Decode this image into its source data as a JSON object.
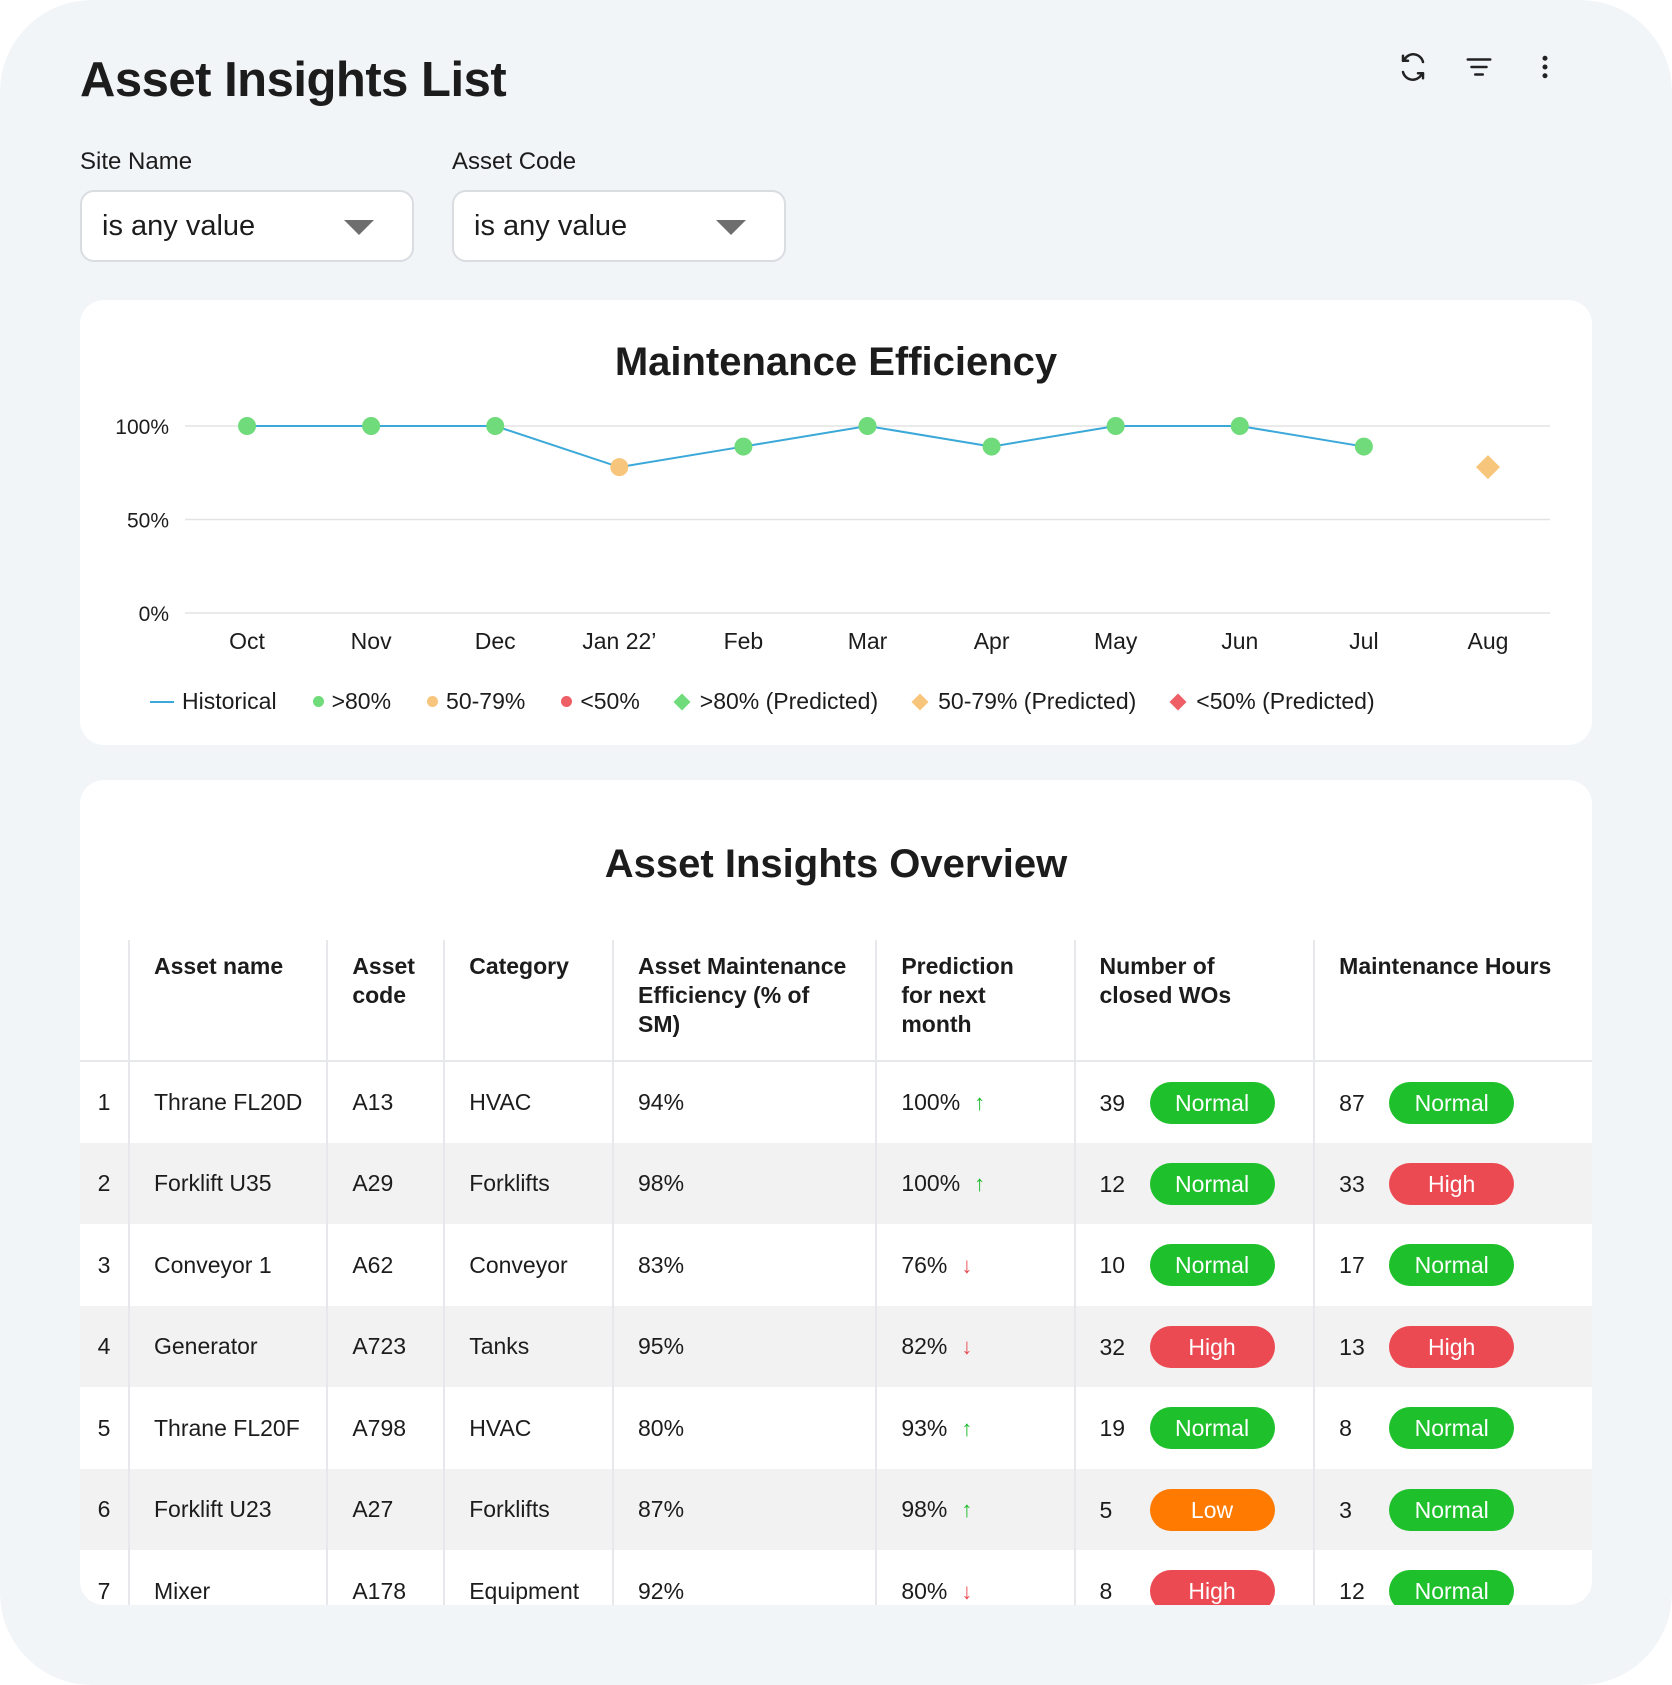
{
  "page": {
    "title": "Asset Insights List",
    "toolbar": {
      "refresh_icon": "refresh-icon",
      "filter_icon": "filter-icon",
      "more_icon": "more-vertical-icon"
    }
  },
  "filters": [
    {
      "label": "Site Name",
      "value": "is any value"
    },
    {
      "label": "Asset Code",
      "value": "is any value"
    }
  ],
  "colors": {
    "line": "#3aa8d8",
    "high_efficiency": "#6fdb7a",
    "mid_efficiency": "#f7c57b",
    "low_efficiency": "#ee5f66",
    "badge_normal": "#1ec02c",
    "badge_high": "#ec4a52",
    "badge_low": "#ff7a00"
  },
  "chart_data": {
    "type": "line",
    "title": "Maintenance Efficiency",
    "categories": [
      "Oct",
      "Nov",
      "Dec",
      "Jan 22’",
      "Feb",
      "Mar",
      "Apr",
      "May",
      "Jun",
      "Jul",
      "Aug"
    ],
    "series": [
      {
        "name": "Historical",
        "values": [
          100,
          100,
          100,
          78,
          89,
          100,
          89,
          100,
          100,
          89,
          null
        ]
      },
      {
        "name": ">80% (Predicted)",
        "values": [
          null,
          null,
          null,
          null,
          null,
          null,
          null,
          null,
          null,
          null,
          78
        ]
      }
    ],
    "ylim": [
      0,
      100
    ],
    "yticks": [
      "0%",
      "50%",
      "100%"
    ],
    "grid": true,
    "legend_position": "bottom",
    "legend": [
      {
        "label": "Historical",
        "marker": "line",
        "color": "#3aa8d8"
      },
      {
        "label": ">80%",
        "marker": "dot",
        "color": "#6fdb7a"
      },
      {
        "label": "50-79%",
        "marker": "dot",
        "color": "#f7c57b"
      },
      {
        "label": "<50%",
        "marker": "dot",
        "color": "#ee5f66"
      },
      {
        "label": ">80% (Predicted)",
        "marker": "diamond",
        "color": "#6fdb7a"
      },
      {
        "label": "50-79% (Predicted)",
        "marker": "diamond",
        "color": "#f7c57b"
      },
      {
        "label": "<50% (Predicted)",
        "marker": "diamond",
        "color": "#ee5f66"
      }
    ]
  },
  "table": {
    "title": "Asset Insights Overview",
    "columns": [
      "",
      "Asset name",
      "Asset code",
      "Category",
      "Asset Maintenance Efficiency (% of SM)",
      "Prediction for next month",
      "Number of closed WOs",
      "Maintenance Hours"
    ],
    "rows": [
      {
        "idx": "1",
        "name": "Thrane FL20D",
        "code": "A13",
        "category": "HVAC",
        "efficiency": "94%",
        "prediction": "100%",
        "trend": "up",
        "wos": "39",
        "wos_status": "Normal",
        "hours": "87",
        "hours_status": "Normal"
      },
      {
        "idx": "2",
        "name": "Forklift U35",
        "code": "A29",
        "category": "Forklifts",
        "efficiency": "98%",
        "prediction": "100%",
        "trend": "up",
        "wos": "12",
        "wos_status": "Normal",
        "hours": "33",
        "hours_status": "High"
      },
      {
        "idx": "3",
        "name": "Conveyor  1",
        "code": "A62",
        "category": "Conveyor",
        "efficiency": "83%",
        "prediction": "76%",
        "trend": "down",
        "wos": "10",
        "wos_status": "Normal",
        "hours": "17",
        "hours_status": "Normal"
      },
      {
        "idx": "4",
        "name": "Generator",
        "code": "A723",
        "category": "Tanks",
        "efficiency": "95%",
        "prediction": "82%",
        "trend": "down",
        "wos": "32",
        "wos_status": "High",
        "hours": "13",
        "hours_status": "High"
      },
      {
        "idx": "5",
        "name": "Thrane FL20F",
        "code": "A798",
        "category": "HVAC",
        "efficiency": "80%",
        "prediction": "93%",
        "trend": "up",
        "wos": "19",
        "wos_status": "Normal",
        "hours": "8",
        "hours_status": "Normal"
      },
      {
        "idx": "6",
        "name": "Forklift U23",
        "code": "A27",
        "category": "Forklifts",
        "efficiency": "87%",
        "prediction": "98%",
        "trend": "up",
        "wos": "5",
        "wos_status": "Low",
        "hours": "3",
        "hours_status": "Normal"
      },
      {
        "idx": "7",
        "name": "Mixer",
        "code": "A178",
        "category": "Equipment",
        "efficiency": "92%",
        "prediction": "80%",
        "trend": "down",
        "wos": "8",
        "wos_status": "High",
        "hours": "12",
        "hours_status": "Normal"
      }
    ]
  }
}
